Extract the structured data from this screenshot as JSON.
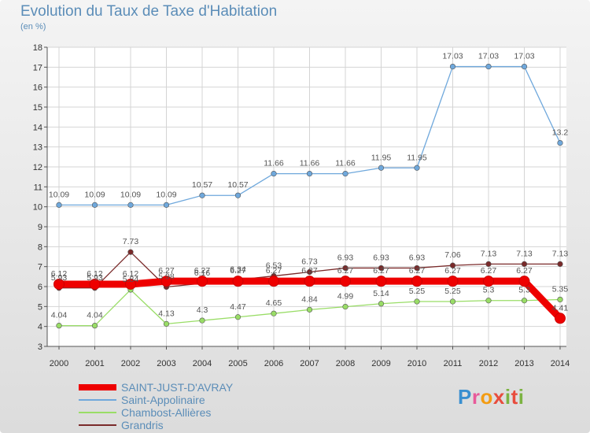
{
  "title": "Evolution du Taux de Taxe d'Habitation",
  "unit": "(en %)",
  "logo_text": "Proxiti",
  "chart_data": {
    "type": "line",
    "x": [
      "2000",
      "2001",
      "2002",
      "2003",
      "2004",
      "2005",
      "2006",
      "2007",
      "2008",
      "2009",
      "2010",
      "2011",
      "2012",
      "2013",
      "2014"
    ],
    "ylim": [
      3,
      18
    ],
    "yticks": [
      3,
      4,
      5,
      6,
      7,
      8,
      9,
      10,
      11,
      12,
      13,
      14,
      15,
      16,
      17,
      18
    ],
    "grid": true,
    "legend_position": "bottom",
    "series": [
      {
        "name": "SAINT-JUST-D'AVRAY",
        "color": "#ee0000",
        "values": [
          6.12,
          6.12,
          6.12,
          6.27,
          6.27,
          6.27,
          6.27,
          6.27,
          6.27,
          6.27,
          6.27,
          6.27,
          6.27,
          6.27,
          4.41
        ],
        "labels": [
          "6.12",
          "6.12",
          "6.12",
          "6.27",
          "6.27",
          "6.27",
          "6.27",
          "6.27",
          "6.27",
          "6.27",
          "6.27",
          "6.27",
          "6.27",
          "6.27",
          "4.41"
        ]
      },
      {
        "name": "Saint-Appolinaire",
        "color": "#6fa8dc",
        "values": [
          10.09,
          10.09,
          10.09,
          10.09,
          10.57,
          10.57,
          11.66,
          11.66,
          11.66,
          11.95,
          11.95,
          17.03,
          17.03,
          17.03,
          13.2
        ],
        "labels": [
          "10.09",
          "10.09",
          "10.09",
          "10.09",
          "10.57",
          "10.57",
          "11.66",
          "11.66",
          "11.66",
          "11.95",
          "11.95",
          "17.03",
          "17.03",
          "17.03",
          "13.2"
        ]
      },
      {
        "name": "Chambost-Allières",
        "color": "#99dd66",
        "values": [
          4.04,
          4.04,
          5.84,
          4.13,
          4.3,
          4.47,
          4.65,
          4.84,
          4.99,
          5.14,
          5.25,
          5.25,
          5.3,
          5.3,
          5.35
        ],
        "labels": [
          "4.04",
          "4.04",
          "5.84",
          "4.13",
          "4.3",
          "4.47",
          "4.65",
          "4.84",
          "4.99",
          "5.14",
          "5.25",
          "5.25",
          "5.3",
          "5.3",
          "5.35"
        ]
      },
      {
        "name": "Grandris",
        "color": "#7a2a2a",
        "values": [
          5.93,
          5.93,
          7.73,
          5.98,
          6.16,
          6.34,
          6.53,
          6.73,
          6.93,
          6.93,
          6.93,
          7.06,
          7.13,
          7.13,
          7.13
        ],
        "labels": [
          "5.93",
          "5.93",
          "7.73",
          "5.98",
          "6.16",
          "6.34",
          "6.53",
          "6.73",
          "6.93",
          "6.93",
          "6.93",
          "7.06",
          "7.13",
          "7.13",
          "7.13"
        ]
      }
    ]
  }
}
